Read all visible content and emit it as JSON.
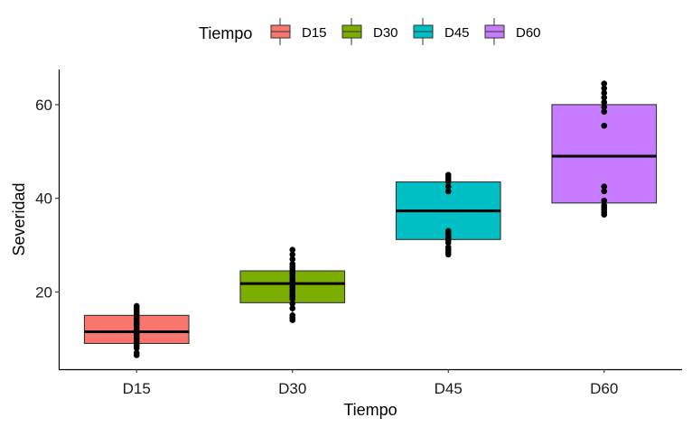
{
  "chart_data": {
    "type": "box",
    "xlabel": "Tiempo",
    "ylabel": "Severidad",
    "ylim": [
      3.5,
      67.5
    ],
    "yticks": [
      20,
      40,
      60
    ],
    "grid": false,
    "legend": {
      "title": "Tiempo",
      "position": "top"
    },
    "categories": [
      "D15",
      "D30",
      "D45",
      "D60"
    ],
    "colors": {
      "D15": "#F8766D",
      "D30": "#7CAE00",
      "D45": "#00BFC4",
      "D60": "#C77CFF"
    },
    "boxes": [
      {
        "name": "D15",
        "q1": 9.0,
        "median": 11.5,
        "q3": 15.0,
        "whisker_low": 6.5,
        "whisker_high": 17.0,
        "points": [
          17.0,
          16.5,
          16.0,
          15.5,
          15.0,
          14.5,
          14.0,
          13.5,
          13.0,
          12.5,
          12.0,
          11.5,
          11.0,
          10.5,
          10.0,
          9.5,
          9.0,
          8.5,
          8.0,
          7.0,
          6.5
        ]
      },
      {
        "name": "D30",
        "q1": 17.7,
        "median": 21.8,
        "q3": 24.5,
        "whisker_low": 14.0,
        "whisker_high": 29.0,
        "points": [
          29.0,
          28.0,
          27.0,
          26.0,
          25.5,
          25.0,
          24.5,
          24.0,
          23.5,
          23.0,
          22.5,
          22.0,
          21.5,
          21.0,
          20.5,
          20.0,
          19.5,
          19.0,
          18.5,
          17.5,
          16.5,
          15.0,
          14.5,
          14.0
        ]
      },
      {
        "name": "D45",
        "q1": 31.2,
        "median": 37.3,
        "q3": 43.5,
        "whisker_low": 28.0,
        "whisker_high": 45.0,
        "points": [
          45.0,
          44.5,
          44.0,
          43.5,
          42.5,
          41.5,
          33.0,
          32.5,
          32.0,
          31.5,
          31.0,
          30.5,
          29.5,
          29.0,
          28.5,
          28.0
        ]
      },
      {
        "name": "D60",
        "q1": 39.0,
        "median": 49.0,
        "q3": 60.0,
        "whisker_low": 36.5,
        "whisker_high": 64.5,
        "points": [
          64.5,
          63.5,
          62.5,
          61.5,
          60.5,
          59.5,
          58.5,
          55.5,
          42.5,
          41.5,
          39.5,
          38.5,
          38.0,
          37.5,
          37.0,
          36.5
        ]
      }
    ]
  }
}
